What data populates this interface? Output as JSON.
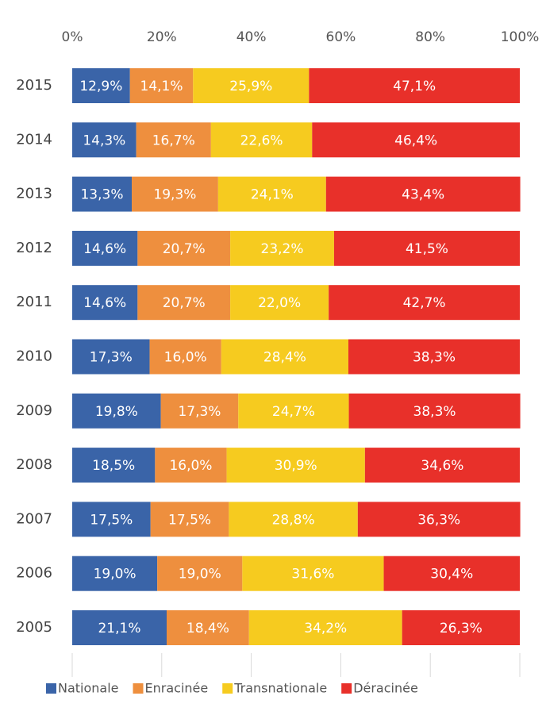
{
  "chart_data": {
    "type": "stacked-barh",
    "categories": [
      "2015",
      "2014",
      "2013",
      "2012",
      "2011",
      "2010",
      "2009",
      "2008",
      "2007",
      "2006",
      "2005"
    ],
    "series": [
      {
        "name": "Nationale",
        "color": "#3a64a8",
        "values": [
          12.9,
          14.3,
          13.3,
          14.6,
          14.6,
          17.3,
          19.8,
          18.5,
          17.5,
          19.0,
          21.1
        ],
        "value_labels": [
          "12,9%",
          "14,3%",
          "13,3%",
          "14,6%",
          "14,6%",
          "17,3%",
          "19,8%",
          "18,5%",
          "17,5%",
          "19,0%",
          "21,1%"
        ]
      },
      {
        "name": "Enracinée",
        "color": "#ee8f3e",
        "values": [
          14.1,
          16.7,
          19.3,
          20.7,
          20.7,
          16.0,
          17.3,
          16.0,
          17.5,
          19.0,
          18.4
        ],
        "value_labels": [
          "14,1%",
          "16,7%",
          "19,3%",
          "20,7%",
          "20,7%",
          "16,0%",
          "17,3%",
          "16,0%",
          "17,5%",
          "19,0%",
          "18,4%"
        ]
      },
      {
        "name": "Transnationale",
        "color": "#f6cb1f",
        "values": [
          25.9,
          22.6,
          24.1,
          23.2,
          22.0,
          28.4,
          24.7,
          30.9,
          28.8,
          31.6,
          34.2
        ],
        "value_labels": [
          "25,9%",
          "22,6%",
          "24,1%",
          "23,2%",
          "22,0%",
          "28,4%",
          "24,7%",
          "30,9%",
          "28,8%",
          "31,6%",
          "34,2%"
        ]
      },
      {
        "name": "Déracinée",
        "color": "#e8302a",
        "values": [
          47.1,
          46.4,
          43.4,
          41.5,
          42.7,
          38.3,
          38.3,
          34.6,
          36.3,
          30.4,
          26.3
        ],
        "value_labels": [
          "47,1%",
          "46,4%",
          "43,4%",
          "41,5%",
          "42,7%",
          "38,3%",
          "38,3%",
          "34,6%",
          "36,3%",
          "30,4%",
          "26,3%"
        ]
      }
    ],
    "xlim": [
      0,
      100
    ],
    "xticks": [
      {
        "value": 0,
        "label": "0%"
      },
      {
        "value": 20,
        "label": "20%"
      },
      {
        "value": 40,
        "label": "40%"
      },
      {
        "value": 60,
        "label": "60%"
      },
      {
        "value": 80,
        "label": "80%"
      },
      {
        "value": 100,
        "label": "100%"
      }
    ],
    "legend": "bottom"
  }
}
